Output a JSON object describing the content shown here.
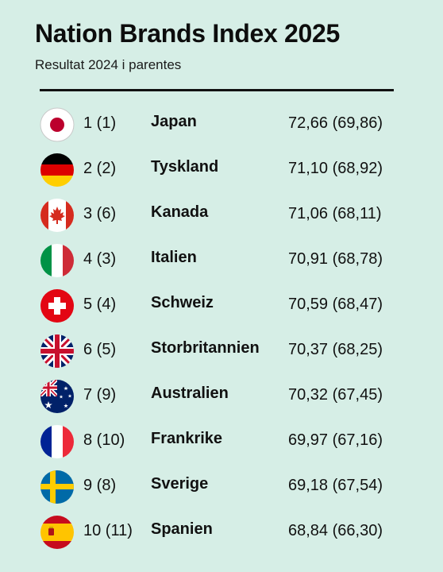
{
  "header": {
    "title": "Nation Brands Index 2025",
    "subtitle": "Resultat 2024 i parentes"
  },
  "rows": [
    {
      "rank": "1 (1)",
      "country": "Japan",
      "score": "72,66 (69,86)",
      "flag_icon": "japan-flag-icon"
    },
    {
      "rank": "2 (2)",
      "country": "Tyskland",
      "score": "71,10 (68,92)",
      "flag_icon": "germany-flag-icon"
    },
    {
      "rank": "3 (6)",
      "country": "Kanada",
      "score": "71,06 (68,11)",
      "flag_icon": "canada-flag-icon"
    },
    {
      "rank": "4 (3)",
      "country": "Italien",
      "score": "70,91 (68,78)",
      "flag_icon": "italy-flag-icon"
    },
    {
      "rank": "5 (4)",
      "country": "Schweiz",
      "score": "70,59 (68,47)",
      "flag_icon": "switzerland-flag-icon"
    },
    {
      "rank": "6 (5)",
      "country": "Storbritannien",
      "score": "70,37 (68,25)",
      "flag_icon": "uk-flag-icon"
    },
    {
      "rank": "7 (9)",
      "country": "Australien",
      "score": "70,32 (67,45)",
      "flag_icon": "australia-flag-icon"
    },
    {
      "rank": "8 (10)",
      "country": "Frankrike",
      "score": "69,97 (67,16)",
      "flag_icon": "france-flag-icon"
    },
    {
      "rank": "9 (8)",
      "country": "Sverige",
      "score": "69,18 (67,54)",
      "flag_icon": "sweden-flag-icon"
    },
    {
      "rank": "10 (11)",
      "country": "Spanien",
      "score": "68,84 (66,30)",
      "flag_icon": "spain-flag-icon"
    }
  ],
  "colors": {
    "background": "#d6eee6",
    "text": "#111111"
  }
}
